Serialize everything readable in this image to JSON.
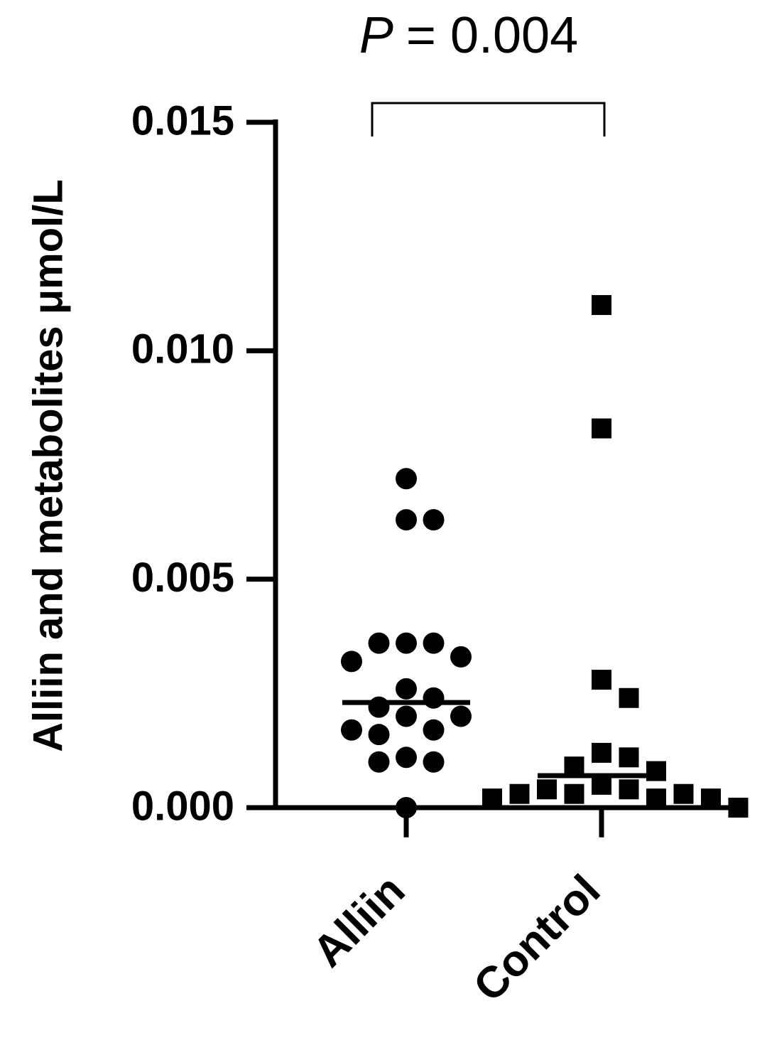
{
  "chart_data": {
    "type": "scatter",
    "y_label": "Alliin and metabolites μmol/L",
    "p_symbol": "P",
    "p_text": "= 0.004",
    "categories": [
      "Alliin",
      "Control"
    ],
    "ylim": [
      0,
      0.015
    ],
    "yticks": [
      {
        "value": 0,
        "label": "0.000"
      },
      0.005,
      {
        "value": 0.01,
        "label": "0.010"
      },
      0.015
    ],
    "series": [
      {
        "name": "Alliin",
        "marker": "circle",
        "color": "#000000",
        "values": [
          0.0072,
          0.0063,
          0.0063,
          0.0036,
          0.0036,
          0.0036,
          0.0033,
          0.0032,
          0.0026,
          0.0024,
          0.0022,
          0.002,
          0.002,
          0.0017,
          0.0017,
          0.0016,
          0.0011,
          0.001,
          0.001,
          0
        ],
        "center": 0.0023,
        "low": -0.00065
      },
      {
        "name": "Control",
        "marker": "square",
        "color": "#000000",
        "values": [
          0.011,
          0.0083,
          0.0028,
          0.0024,
          0.0012,
          0.0011,
          0.0009,
          0.0008,
          0.0005,
          0.0004,
          0.0004,
          0.0003,
          0.0003,
          0.0003,
          0.0002,
          0.0002,
          0.0002,
          0
        ],
        "center": 0.0007,
        "low": -0.00065
      }
    ]
  }
}
